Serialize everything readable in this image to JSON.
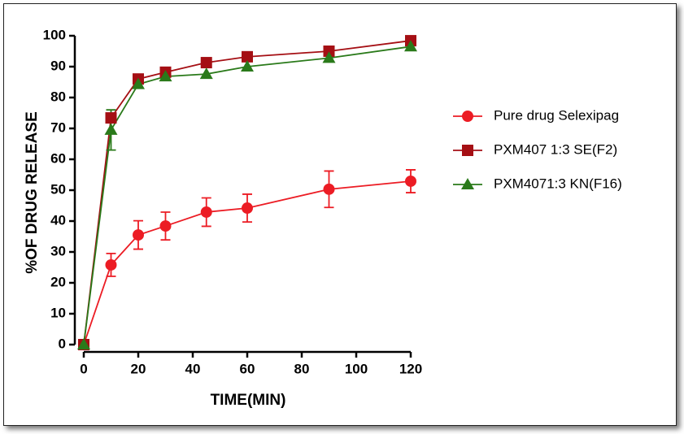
{
  "chart_data": {
    "type": "line",
    "xlabel": "TIME(MIN)",
    "ylabel": "%OF DRUG RELEASE",
    "x": [
      0,
      10,
      20,
      30,
      45,
      60,
      90,
      120
    ],
    "xlim": [
      0,
      120
    ],
    "xticks": [
      0,
      20,
      40,
      60,
      80,
      100,
      120
    ],
    "ylim": [
      0,
      100
    ],
    "yticks": [
      0,
      10,
      20,
      30,
      40,
      50,
      60,
      70,
      80,
      90,
      100
    ],
    "series": [
      {
        "name": "Pure drug Selexipag",
        "color": "#ec1c24",
        "marker": "circle",
        "values": [
          0,
          25.8,
          35.5,
          38.4,
          42.9,
          44.2,
          50.3,
          52.9
        ],
        "errors": [
          null,
          3.7,
          4.6,
          4.5,
          4.6,
          4.5,
          5.9,
          3.7
        ]
      },
      {
        "name": "PXM407 1:3 SE(F2)",
        "color": "#a50f14",
        "marker": "square",
        "values": [
          0,
          73.4,
          86,
          88.2,
          91.3,
          93.2,
          95,
          98.4
        ],
        "errors": [
          null,
          null,
          null,
          null,
          null,
          null,
          null,
          null
        ]
      },
      {
        "name": "PXM4071:3 KN(F16)",
        "color": "#2a7a1a",
        "marker": "triangle",
        "values": [
          0,
          69.5,
          84.3,
          86.8,
          87.6,
          90,
          92.8,
          96.5
        ],
        "errors": [
          null,
          6.5,
          null,
          null,
          null,
          null,
          null,
          null
        ]
      }
    ],
    "legend": "right"
  }
}
